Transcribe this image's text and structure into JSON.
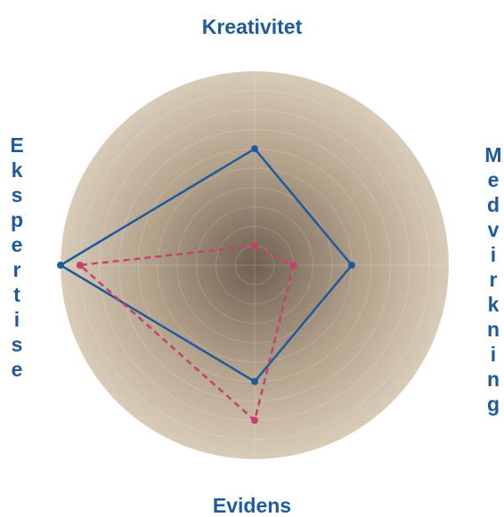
{
  "chart_data": {
    "type": "radar",
    "categories": [
      "Kreativitet",
      "Medvirkning",
      "Evidens",
      "Ekspertise"
    ],
    "series": [
      {
        "color": "#1f5a9a",
        "dash": false,
        "values": [
          6,
          5,
          6,
          10
        ]
      },
      {
        "color": "#c8406e",
        "dash": true,
        "values": [
          1,
          2,
          8,
          9
        ]
      }
    ],
    "rlim": [
      0,
      10
    ],
    "rticks": [
      1,
      2,
      3,
      4,
      5,
      6,
      7,
      8,
      9,
      10
    ],
    "grid": true
  }
}
